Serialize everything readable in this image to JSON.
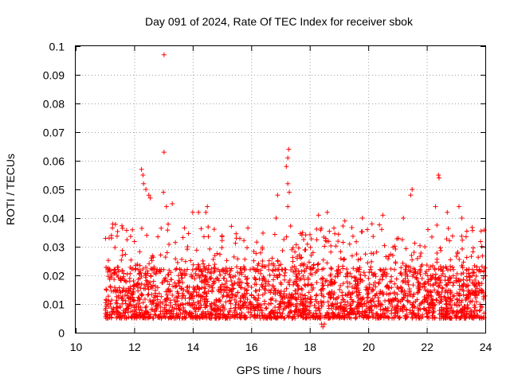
{
  "chart_data": {
    "type": "scatter",
    "title": "Day 091 of 2024, Rate Of TEC Index for receiver sbok",
    "xlabel": "GPS time / hours",
    "ylabel": "ROTI / TECUs",
    "xlim": [
      10,
      24
    ],
    "ylim": [
      0,
      0.1
    ],
    "x_ticks": [
      "10",
      "12",
      "14",
      "16",
      "18",
      "20",
      "22",
      "24"
    ],
    "y_ticks": [
      "0",
      "0.01",
      "0.02",
      "0.03",
      "0.04",
      "0.05",
      "0.06",
      "0.07",
      "0.08",
      "0.09",
      "0.1"
    ],
    "grid": true,
    "marker": "plus",
    "marker_color": "#ff0000",
    "series": [
      {
        "name": "ROTI",
        "x_range": [
          11.0,
          24.0
        ],
        "typical_band": [
          0.005,
          0.022
        ],
        "notable_points": [
          {
            "x": 13.02,
            "y": 0.097
          },
          {
            "x": 13.02,
            "y": 0.063
          },
          {
            "x": 17.28,
            "y": 0.064
          },
          {
            "x": 17.25,
            "y": 0.061
          },
          {
            "x": 17.2,
            "y": 0.058
          },
          {
            "x": 17.25,
            "y": 0.052
          },
          {
            "x": 22.4,
            "y": 0.055
          },
          {
            "x": 22.42,
            "y": 0.054
          },
          {
            "x": 21.5,
            "y": 0.05
          },
          {
            "x": 21.45,
            "y": 0.048
          },
          {
            "x": 12.25,
            "y": 0.057
          },
          {
            "x": 12.3,
            "y": 0.055
          },
          {
            "x": 12.32,
            "y": 0.052
          },
          {
            "x": 12.4,
            "y": 0.05
          },
          {
            "x": 12.5,
            "y": 0.048
          },
          {
            "x": 12.55,
            "y": 0.047
          },
          {
            "x": 13.0,
            "y": 0.049
          },
          {
            "x": 13.1,
            "y": 0.044
          },
          {
            "x": 13.3,
            "y": 0.045
          },
          {
            "x": 14.5,
            "y": 0.044
          },
          {
            "x": 14.45,
            "y": 0.042
          },
          {
            "x": 14.0,
            "y": 0.042
          },
          {
            "x": 14.2,
            "y": 0.042
          },
          {
            "x": 17.3,
            "y": 0.049
          },
          {
            "x": 17.25,
            "y": 0.044
          },
          {
            "x": 16.9,
            "y": 0.048
          },
          {
            "x": 16.85,
            "y": 0.04
          },
          {
            "x": 22.3,
            "y": 0.044
          },
          {
            "x": 22.7,
            "y": 0.042
          },
          {
            "x": 23.1,
            "y": 0.044
          },
          {
            "x": 23.2,
            "y": 0.04
          },
          {
            "x": 21.2,
            "y": 0.04
          },
          {
            "x": 20.5,
            "y": 0.041
          },
          {
            "x": 18.6,
            "y": 0.042
          },
          {
            "x": 18.3,
            "y": 0.041
          },
          {
            "x": 19.2,
            "y": 0.039
          },
          {
            "x": 19.8,
            "y": 0.04
          },
          {
            "x": 18.4,
            "y": 0.003
          },
          {
            "x": 18.45,
            "y": 0.002
          },
          {
            "x": 18.5,
            "y": 0.003
          }
        ]
      }
    ]
  }
}
